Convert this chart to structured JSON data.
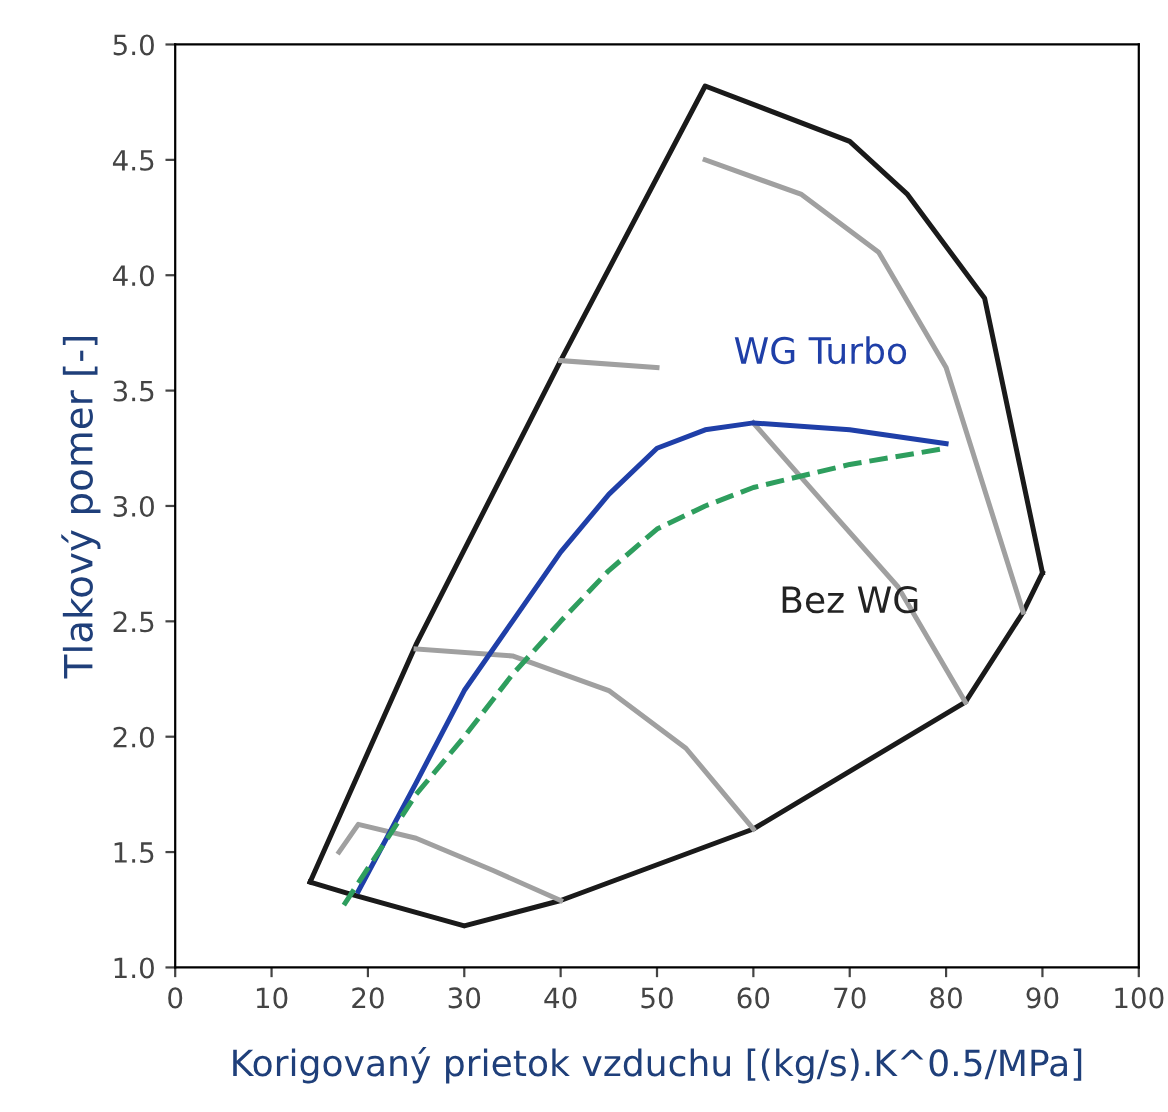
{
  "chart_data": {
    "type": "line",
    "xlabel": "Korigovaný prietok vzduchu [(kg/s).K^0.5/MPa]",
    "ylabel": "Tlakový pomer [-]",
    "xlim": [
      0,
      100
    ],
    "ylim": [
      1.0,
      5.0
    ],
    "xticks": [
      0,
      10,
      20,
      30,
      40,
      50,
      60,
      70,
      80,
      90,
      100
    ],
    "yticks": [
      {
        "value": 1.0,
        "label": "1.0"
      },
      {
        "value": 1.5,
        "label": "1.5"
      },
      {
        "value": 2.0,
        "label": "2.0"
      },
      {
        "value": 2.5,
        "label": "2.5"
      },
      {
        "value": 3.0,
        "label": "3.0"
      },
      {
        "value": 3.5,
        "label": "3.5"
      },
      {
        "value": 4.0,
        "label": "4.0"
      },
      {
        "value": 4.5,
        "label": "4.5"
      },
      {
        "value": 5.0,
        "label": "5.0"
      }
    ],
    "grid": false,
    "marker": "none",
    "series": [
      {
        "color": "#1a1a1a",
        "x": [
          14,
          25,
          40,
          55,
          70,
          76,
          84,
          90
        ],
        "values": [
          1.37,
          2.4,
          3.63,
          4.82,
          4.58,
          4.35,
          3.9,
          2.71
        ]
      },
      {
        "color": "#1a1a1a",
        "x": [
          14,
          18,
          30,
          40,
          60,
          82,
          88,
          90
        ],
        "values": [
          1.37,
          1.32,
          1.18,
          1.29,
          1.6,
          2.15,
          2.54,
          2.71
        ]
      },
      {
        "color": "#a0a0a0",
        "x": [
          17,
          19,
          25,
          33,
          40
        ],
        "values": [
          1.5,
          1.62,
          1.56,
          1.42,
          1.29
        ]
      },
      {
        "color": "#a0a0a0",
        "x": [
          25,
          35,
          45,
          53,
          60
        ],
        "values": [
          2.38,
          2.35,
          2.2,
          1.95,
          1.6
        ]
      },
      {
        "color": "#a0a0a0",
        "x": [
          40,
          50
        ],
        "values": [
          3.63,
          3.6
        ]
      },
      {
        "color": "#a0a0a0",
        "x": [
          60,
          68,
          75,
          82
        ],
        "values": [
          3.36,
          2.98,
          2.65,
          2.15
        ]
      },
      {
        "color": "#a0a0a0",
        "x": [
          55,
          65,
          73,
          80,
          88
        ],
        "values": [
          4.5,
          4.35,
          4.1,
          3.6,
          2.54
        ]
      },
      {
        "color": "#1f3fa8",
        "x": [
          19,
          25,
          30,
          35,
          40,
          45,
          50,
          55,
          60,
          70,
          80
        ],
        "values": [
          1.33,
          1.8,
          2.2,
          2.5,
          2.8,
          3.05,
          3.25,
          3.33,
          3.36,
          3.33,
          3.27
        ]
      },
      {
        "color": "#2e9e5e",
        "line_style": "dashed",
        "x": [
          17.5,
          25,
          30,
          35,
          40,
          45,
          50,
          55,
          60,
          70,
          80
        ],
        "values": [
          1.27,
          1.75,
          2.0,
          2.27,
          2.5,
          2.72,
          2.9,
          3.0,
          3.08,
          3.18,
          3.25
        ]
      }
    ],
    "annotations": [
      "WG Turbo",
      "Bez WG"
    ]
  }
}
